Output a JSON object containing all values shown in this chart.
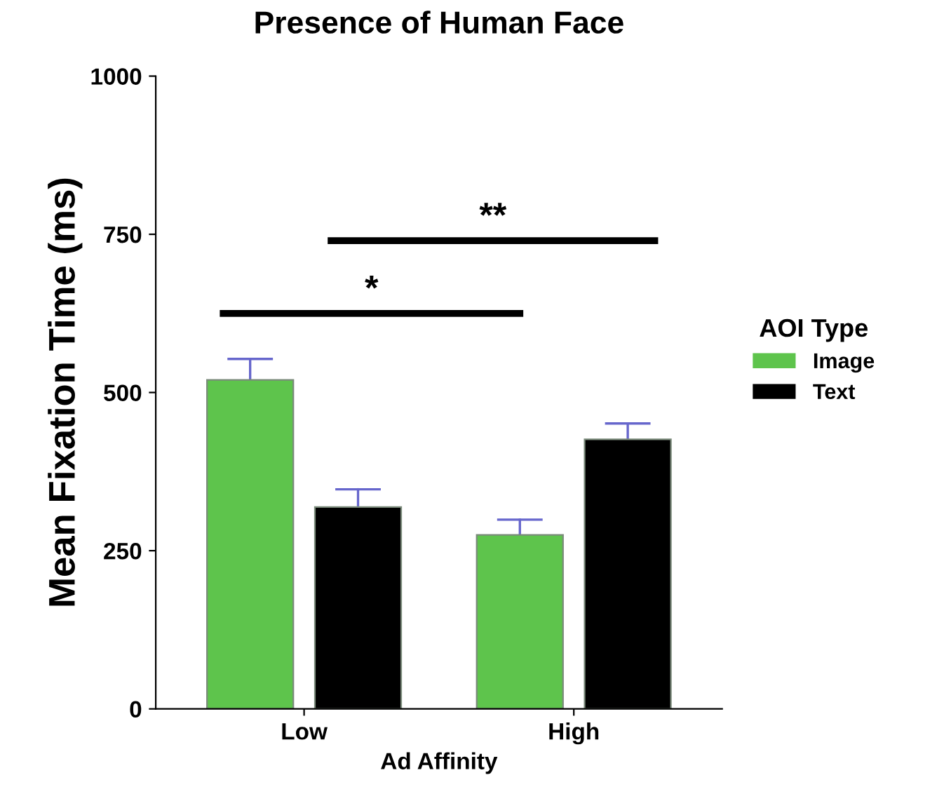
{
  "chart_data": {
    "type": "bar",
    "title": "Presence of Human Face",
    "xlabel": "Ad Affinity",
    "ylabel": "Mean Fixation Time (ms)",
    "legend_title": "AOI Type",
    "categories": [
      "Low",
      "High"
    ],
    "series": [
      {
        "name": "Image",
        "color": "#5ec44c",
        "values": [
          520,
          275
        ],
        "errors": [
          33,
          24
        ]
      },
      {
        "name": "Text",
        "color": "#000000",
        "values": [
          319,
          426
        ],
        "errors": [
          28,
          25
        ]
      }
    ],
    "ylim": [
      0,
      1000
    ],
    "yticks": [
      0,
      250,
      500,
      750,
      1000
    ],
    "grid": false,
    "legend": "right",
    "annotations": [
      "*",
      "**"
    ]
  }
}
